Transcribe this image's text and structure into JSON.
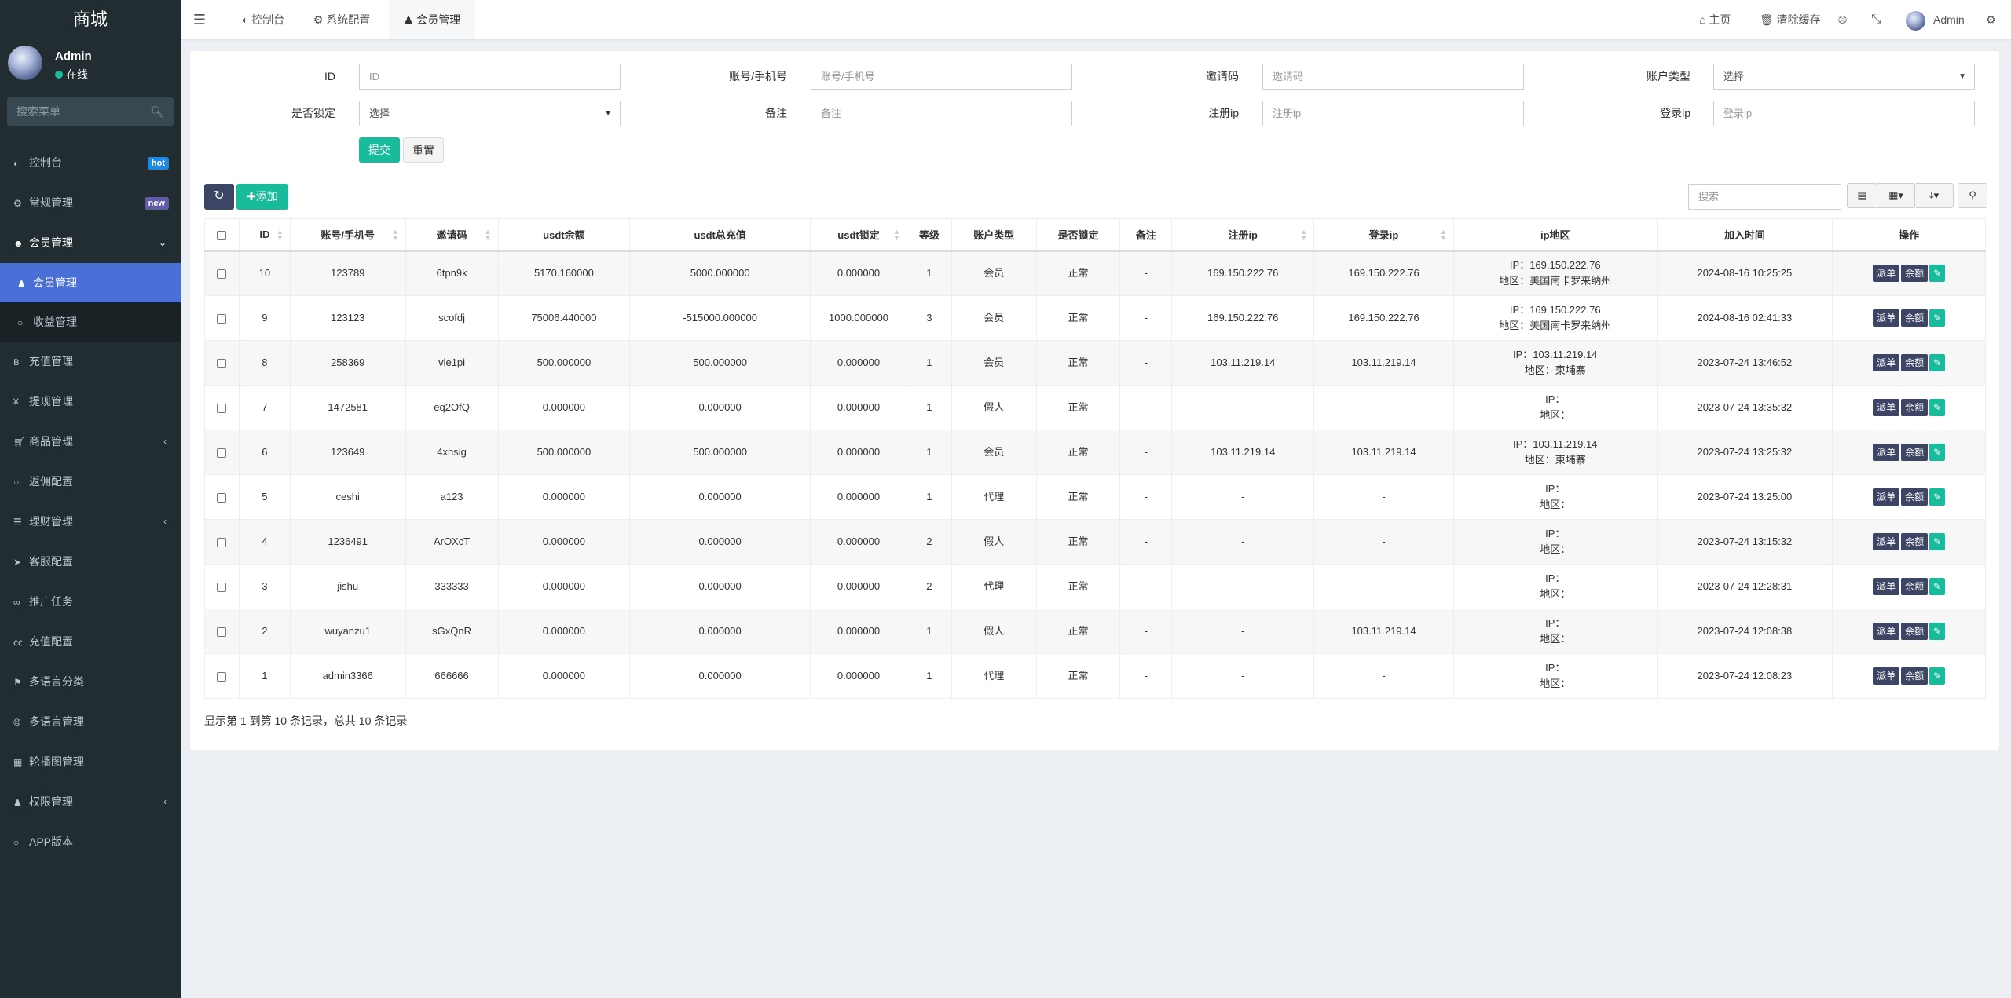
{
  "sidebar": {
    "logo": "商城",
    "user": {
      "name": "Admin",
      "status": "在线"
    },
    "search_placeholder": "搜索菜单",
    "items": [
      {
        "label": "控制台",
        "icon": "dashboard-icon",
        "badge": "hot",
        "badge_color": "#1e88e5"
      },
      {
        "label": "常规管理",
        "icon": "cogs-icon",
        "badge": "new",
        "badge_color": "#605ca8"
      },
      {
        "label": "会员管理",
        "icon": "user-circle-icon",
        "open": true,
        "children": [
          {
            "label": "会员管理",
            "icon": "user-icon",
            "active": true
          },
          {
            "label": "收益管理",
            "icon": "circle-icon"
          }
        ]
      },
      {
        "label": "充值管理",
        "icon": "bitcoin-icon"
      },
      {
        "label": "提现管理",
        "icon": "yen-icon"
      },
      {
        "label": "商品管理",
        "icon": "cart-icon",
        "has_children": true
      },
      {
        "label": "返佣配置",
        "icon": "circle-icon"
      },
      {
        "label": "理财管理",
        "icon": "list-icon",
        "has_children": true
      },
      {
        "label": "客服配置",
        "icon": "telegram-icon"
      },
      {
        "label": "推广任务",
        "icon": "link-icon"
      },
      {
        "label": "充值配置",
        "icon": "cc-icon"
      },
      {
        "label": "多语言分类",
        "icon": "tag-icon"
      },
      {
        "label": "多语言管理",
        "icon": "language-icon"
      },
      {
        "label": "轮播图管理",
        "icon": "image-icon"
      },
      {
        "label": "权限管理",
        "icon": "group-icon",
        "has_children": true
      },
      {
        "label": "APP版本",
        "icon": "circle-icon"
      }
    ]
  },
  "header": {
    "tabs": [
      {
        "label": "控制台",
        "icon": "dashboard-icon"
      },
      {
        "label": "系统配置",
        "icon": "gear-icon"
      },
      {
        "label": "会员管理",
        "icon": "user-icon",
        "active": true
      }
    ],
    "home": "主页",
    "clear_cache": "清除缓存",
    "user": "Admin"
  },
  "filters": {
    "id": {
      "label": "ID",
      "placeholder": "ID"
    },
    "account": {
      "label": "账号/手机号",
      "placeholder": "账号/手机号"
    },
    "invite": {
      "label": "邀请码",
      "placeholder": "邀请码"
    },
    "type": {
      "label": "账户类型",
      "value": "选择"
    },
    "locked": {
      "label": "是否锁定",
      "value": "选择"
    },
    "remark": {
      "label": "备注",
      "placeholder": "备注"
    },
    "reg_ip": {
      "label": "注册ip",
      "placeholder": "注册ip"
    },
    "login_ip": {
      "label": "登录ip",
      "placeholder": "登录ip"
    },
    "submit": "提交",
    "reset": "重置"
  },
  "toolbar": {
    "add": "添加",
    "search_placeholder": "搜索"
  },
  "table": {
    "columns": [
      "ID",
      "账号/手机号",
      "邀请码",
      "usdt余额",
      "usdt总充值",
      "usdt锁定",
      "等级",
      "账户类型",
      "是否锁定",
      "备注",
      "注册ip",
      "登录ip",
      "ip地区",
      "加入时间",
      "操作"
    ],
    "actions": {
      "dispatch": "派单",
      "balance": "余额"
    },
    "rows": [
      [
        "10",
        "123789",
        "6tpn9k",
        "5170.160000",
        "5000.000000",
        "0.000000",
        "1",
        "会员",
        "正常",
        "-",
        "169.150.222.76",
        "169.150.222.76",
        "IP：169.150.222.76",
        "地区：美国南卡罗来纳州",
        "2024-08-16 10:25:25"
      ],
      [
        "9",
        "123123",
        "scofdj",
        "75006.440000",
        "-515000.000000",
        "1000.000000",
        "3",
        "会员",
        "正常",
        "-",
        "169.150.222.76",
        "169.150.222.76",
        "IP：169.150.222.76",
        "地区：美国南卡罗来纳州",
        "2024-08-16 02:41:33"
      ],
      [
        "8",
        "258369",
        "vle1pi",
        "500.000000",
        "500.000000",
        "0.000000",
        "1",
        "会员",
        "正常",
        "-",
        "103.11.219.14",
        "103.11.219.14",
        "IP：103.11.219.14",
        "地区：柬埔寨",
        "2023-07-24 13:46:52"
      ],
      [
        "7",
        "1472581",
        "eq2OfQ",
        "0.000000",
        "0.000000",
        "0.000000",
        "1",
        "假人",
        "正常",
        "-",
        "-",
        "-",
        "IP：",
        "地区：",
        "2023-07-24 13:35:32"
      ],
      [
        "6",
        "123649",
        "4xhsig",
        "500.000000",
        "500.000000",
        "0.000000",
        "1",
        "会员",
        "正常",
        "-",
        "103.11.219.14",
        "103.11.219.14",
        "IP：103.11.219.14",
        "地区：柬埔寨",
        "2023-07-24 13:25:32"
      ],
      [
        "5",
        "ceshi",
        "a123",
        "0.000000",
        "0.000000",
        "0.000000",
        "1",
        "代理",
        "正常",
        "-",
        "-",
        "-",
        "IP：",
        "地区：",
        "2023-07-24 13:25:00"
      ],
      [
        "4",
        "1236491",
        "ArOXcT",
        "0.000000",
        "0.000000",
        "0.000000",
        "2",
        "假人",
        "正常",
        "-",
        "-",
        "-",
        "IP：",
        "地区：",
        "2023-07-24 13:15:32"
      ],
      [
        "3",
        "jishu",
        "333333",
        "0.000000",
        "0.000000",
        "0.000000",
        "2",
        "代理",
        "正常",
        "-",
        "-",
        "-",
        "IP：",
        "地区：",
        "2023-07-24 12:28:31"
      ],
      [
        "2",
        "wuyanzu1",
        "sGxQnR",
        "0.000000",
        "0.000000",
        "0.000000",
        "1",
        "假人",
        "正常",
        "-",
        "-",
        "103.11.219.14",
        "IP：",
        "地区：",
        "2023-07-24 12:08:38"
      ],
      [
        "1",
        "admin3366",
        "666666",
        "0.000000",
        "0.000000",
        "0.000000",
        "1",
        "代理",
        "正常",
        "-",
        "-",
        "-",
        "IP：",
        "地区：",
        "2023-07-24 12:08:23"
      ]
    ]
  },
  "pagination": {
    "summary": "显示第 1 到第 10 条记录，总共 10 条记录"
  },
  "colors": {
    "sidebar": "#222d32",
    "active": "#4a70d8",
    "primary_dark": "#3c4563",
    "success": "#18bc9c"
  }
}
